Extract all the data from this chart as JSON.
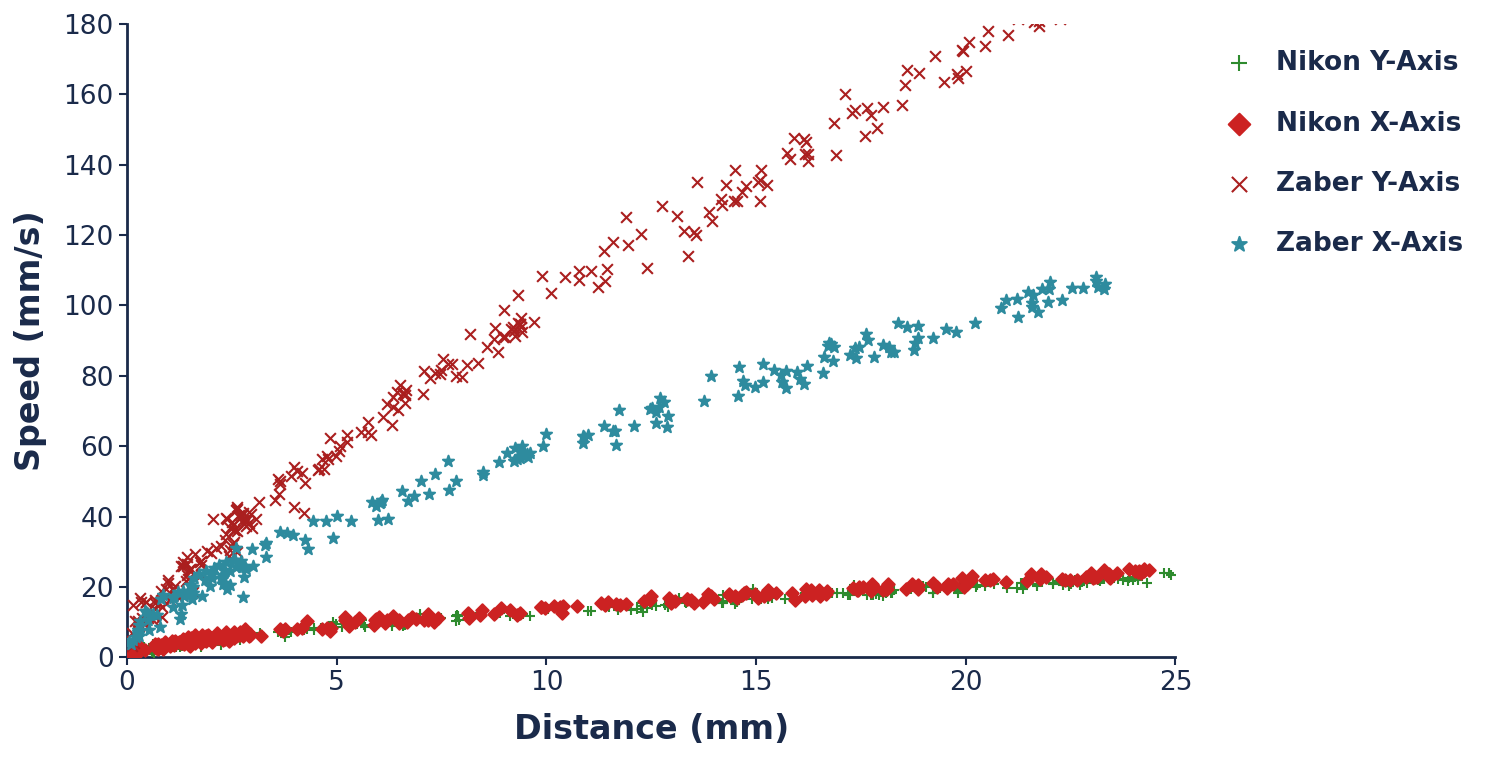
{
  "title": "",
  "xlabel": "Distance (mm)",
  "ylabel": "Speed (mm/s)",
  "xlim": [
    0,
    25
  ],
  "ylim": [
    0,
    180
  ],
  "xticks": [
    0,
    5,
    10,
    15,
    20,
    25
  ],
  "yticks": [
    0,
    20,
    40,
    60,
    80,
    100,
    120,
    140,
    160,
    180
  ],
  "background_color": "#ffffff",
  "series": [
    {
      "label": "Nikon Y-Axis",
      "color": "#2e8b2e",
      "marker": "+",
      "a": 3.2,
      "b": 0.28,
      "x_start": 0.02,
      "x_end": 25.0,
      "n_points": 200,
      "noise": 0.7,
      "ms": 55
    },
    {
      "label": "Nikon X-Axis",
      "color": "#cc2222",
      "marker": "D",
      "a": 3.4,
      "b": 0.3,
      "x_start": 0.02,
      "x_end": 24.5,
      "n_points": 180,
      "noise": 0.8,
      "ms": 40
    },
    {
      "label": "Zaber Y-Axis",
      "color": "#aa1f1f",
      "marker": "x",
      "a": 15.0,
      "b": 5.2,
      "x_start": 0.05,
      "x_end": 24.5,
      "n_points": 200,
      "noise": 3.5,
      "ms": 60
    },
    {
      "label": "Zaber X-Axis",
      "color": "#2e8b9e",
      "marker": "*",
      "a": 12.5,
      "b": 2.0,
      "x_start": 0.05,
      "x_end": 23.5,
      "n_points": 150,
      "noise": 2.5,
      "ms": 70
    }
  ],
  "legend_fontsize": 19,
  "axis_label_fontsize": 24,
  "tick_fontsize": 19,
  "axis_color": "#1a2a4a",
  "label_color": "#1a2a4a",
  "linewidth_marker": 1.5
}
